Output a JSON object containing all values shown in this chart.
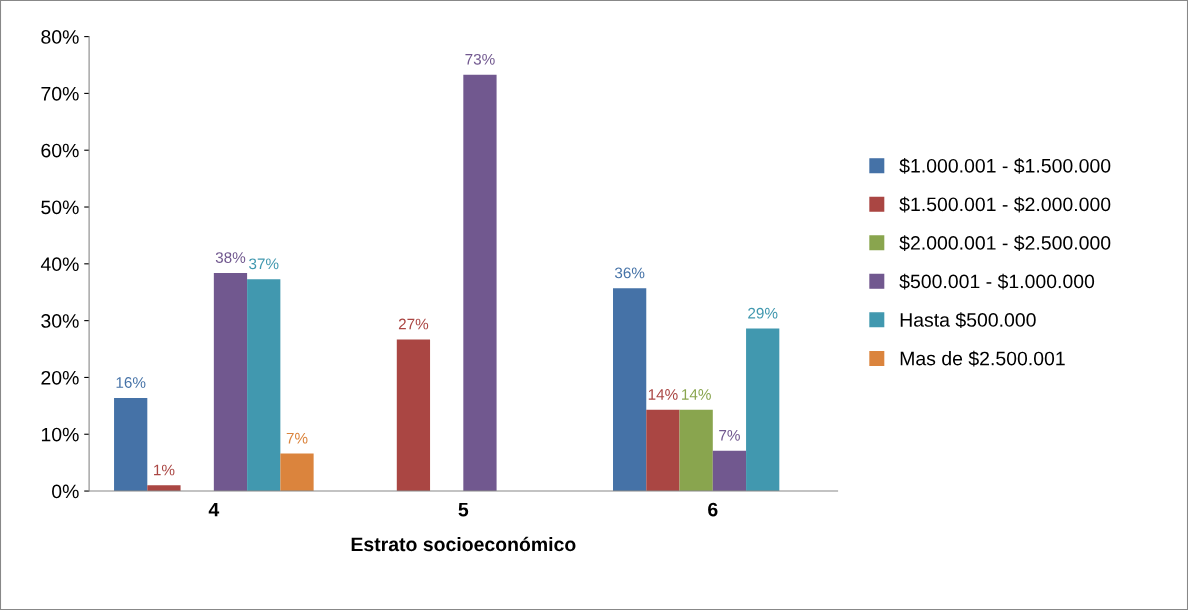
{
  "chart_data": {
    "type": "bar",
    "xlabel": "Estrato socioeconómico",
    "categories": [
      "4",
      "5",
      "6"
    ],
    "series": [
      {
        "name": "$1.000.001 - $1.500.000",
        "color": "#4572a7",
        "values": [
          16.4,
          null,
          35.7
        ],
        "value_labels": [
          "16%",
          null,
          "36%"
        ]
      },
      {
        "name": "$1.500.001 - $2.000.000",
        "color": "#aa4643",
        "values": [
          1,
          26.7,
          14.3
        ],
        "value_labels": [
          "1%",
          "27%",
          "14%"
        ]
      },
      {
        "name": "$2.000.001 - $2.500.000",
        "color": "#89a54e",
        "values": [
          null,
          null,
          14.3
        ],
        "value_labels": [
          null,
          null,
          "14%"
        ]
      },
      {
        "name": "$500.001 - $1.000.000",
        "color": "#71588f",
        "values": [
          38.4,
          73.3,
          7.1
        ],
        "value_labels": [
          "38%",
          "73%",
          "7%"
        ]
      },
      {
        "name": "Hasta $500.000",
        "color": "#4198af",
        "values": [
          37.3,
          null,
          28.6
        ],
        "value_labels": [
          "37%",
          null,
          "29%"
        ]
      },
      {
        "name": "Mas de $2.500.001",
        "color": "#db843d",
        "values": [
          6.6,
          null,
          null
        ],
        "value_labels": [
          "7%",
          null,
          null
        ]
      }
    ],
    "ylim": [
      0,
      80
    ],
    "yticks": [
      {
        "value": 0,
        "label": "0%"
      },
      {
        "value": 10,
        "label": "10%"
      },
      {
        "value": 20,
        "label": "20%"
      },
      {
        "value": 30,
        "label": "30%"
      },
      {
        "value": 40,
        "label": "40%"
      },
      {
        "value": 50,
        "label": "50%"
      },
      {
        "value": 60,
        "label": "60%"
      },
      {
        "value": 70,
        "label": "70%"
      },
      {
        "value": 80,
        "label": "80%"
      }
    ],
    "grid": false,
    "legend": "right"
  }
}
